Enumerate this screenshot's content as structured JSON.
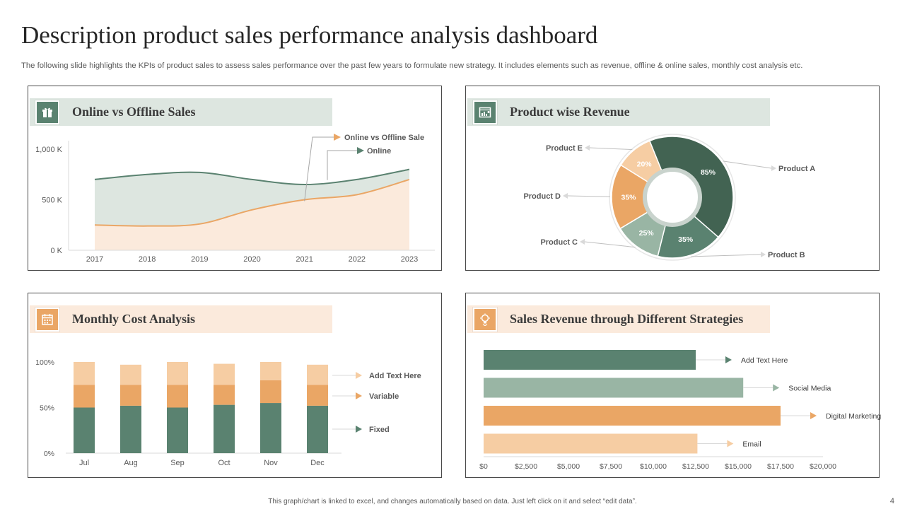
{
  "page": {
    "title": "Description  product  sales  performance  analysis  dashboard",
    "subtitle": "The following slide highlights the KPIs of product sales to assess sales performance over the past few years to formulate new strategy. It includes elements such as revenue, offline & online sales, monthly cost analysis etc.",
    "footer": "This graph/chart is linked to excel, and changes automatically based on data. Just left click on it and select “edit data”.",
    "page_number": "4"
  },
  "colors": {
    "dark_green": "#426352",
    "green": "#5a8270",
    "sage": "#99b5a4",
    "light_green_area": "#dde6e0",
    "orange": "#eaa665",
    "light_orange": "#f6cda3",
    "peach_area": "#fbeadc"
  },
  "panels": {
    "online_offline": {
      "title": "Online vs Offline Sales",
      "icon": "shopping-cart-icon"
    },
    "product_revenue": {
      "title": "Product wise Revenue",
      "icon": "browser-chart-icon"
    },
    "monthly_cost": {
      "title": "Monthly Cost Analysis",
      "icon": "calendar-icon"
    },
    "strategies": {
      "title": "Sales Revenue through Different Strategies",
      "icon": "strategy-icon"
    }
  },
  "chart_data": [
    {
      "id": "online_offline",
      "type": "area",
      "title": "Online vs Offline Sales",
      "x": [
        "2017",
        "2018",
        "2019",
        "2020",
        "2021",
        "2022",
        "2023"
      ],
      "series": [
        {
          "name": "Online",
          "values": [
            700,
            750,
            770,
            700,
            650,
            700,
            800
          ]
        },
        {
          "name": "Online vs Offline Sale",
          "values": [
            250,
            240,
            260,
            400,
            500,
            550,
            700
          ]
        }
      ],
      "ylim": [
        0,
        1000
      ],
      "yticks": [
        0,
        500,
        1000
      ],
      "ytick_labels": [
        "0 K",
        "500 K",
        "1,000 K"
      ],
      "legend_order": [
        "Online vs Offline Sale",
        "Online"
      ],
      "grid": false
    },
    {
      "id": "product_revenue",
      "type": "pie",
      "title": "Product wise Revenue",
      "categories": [
        "Product A",
        "Product B",
        "Product C",
        "Product D",
        "Product E"
      ],
      "values": [
        85,
        35,
        25,
        35,
        20
      ],
      "labels": [
        "85%",
        "35%",
        "25%",
        "35%",
        "20%"
      ]
    },
    {
      "id": "monthly_cost",
      "type": "bar",
      "stacked": true,
      "title": "Monthly Cost Analysis",
      "categories": [
        "Jul",
        "Aug",
        "Sep",
        "Oct",
        "Nov",
        "Dec"
      ],
      "series": [
        {
          "name": "Fixed",
          "values": [
            50,
            52,
            50,
            53,
            55,
            52
          ]
        },
        {
          "name": "Variable",
          "values": [
            25,
            23,
            25,
            22,
            25,
            23
          ]
        },
        {
          "name": "Add Text Here",
          "values": [
            25,
            22,
            25,
            23,
            20,
            22
          ]
        }
      ],
      "ylim": [
        0,
        100
      ],
      "yticks": [
        0,
        50,
        100
      ],
      "ytick_labels": [
        "0%",
        "50%",
        "100%"
      ],
      "legend_order": [
        "Add Text Here",
        "Variable",
        "Fixed"
      ]
    },
    {
      "id": "strategies",
      "type": "bar",
      "orientation": "horizontal",
      "title": "Sales Revenue through Different Strategies",
      "categories": [
        "Add Text Here",
        "Social Media",
        "Digital Marketing",
        "Email"
      ],
      "values": [
        12500,
        15300,
        17500,
        12600
      ],
      "xlim": [
        0,
        20000
      ],
      "xticks": [
        0,
        2500,
        5000,
        7500,
        10000,
        12500,
        15000,
        17500,
        20000
      ],
      "xtick_labels": [
        "$0",
        "$2,500",
        "$5,000",
        "$7,500",
        "$10,000",
        "$12,500",
        "$15,000",
        "$17,500",
        "$20,000"
      ]
    }
  ]
}
